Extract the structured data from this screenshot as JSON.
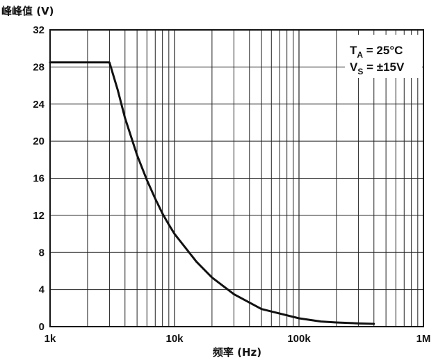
{
  "chart_data": {
    "type": "line",
    "title": "",
    "ylabel": "峰峰值 (V)",
    "xlabel": "频率 (Hz)",
    "x_scale": "log",
    "xlim": [
      1000,
      1000000
    ],
    "ylim": [
      0,
      32
    ],
    "x_ticks": [
      1000,
      10000,
      100000,
      1000000
    ],
    "x_tick_labels": [
      "1k",
      "10k",
      "100k",
      "1M"
    ],
    "y_ticks": [
      0,
      4,
      8,
      12,
      16,
      20,
      24,
      28,
      32
    ],
    "y_tick_labels": [
      "0",
      "4",
      "8",
      "12",
      "16",
      "20",
      "24",
      "28",
      "32"
    ],
    "grid": true,
    "annotations": [
      {
        "main": "T",
        "sub": "A",
        "rest": " = 25°C"
      },
      {
        "main": "V",
        "sub": "S",
        "rest": " = ±15V"
      }
    ],
    "series": [
      {
        "x": [
          1000,
          3000,
          3500,
          4000,
          5000,
          6000,
          7000,
          8000,
          9000,
          10000,
          15000,
          20000,
          30000,
          50000,
          100000,
          150000,
          200000,
          300000,
          400000
        ],
        "y": [
          28.5,
          28.5,
          25.5,
          22.5,
          18.5,
          15.8,
          13.8,
          12.2,
          11.0,
          10.0,
          7.0,
          5.3,
          3.5,
          1.9,
          0.9,
          0.55,
          0.45,
          0.35,
          0.3
        ]
      }
    ],
    "colors": {
      "line": "#111111",
      "grid": "#222222",
      "background": "#ffffff"
    }
  }
}
